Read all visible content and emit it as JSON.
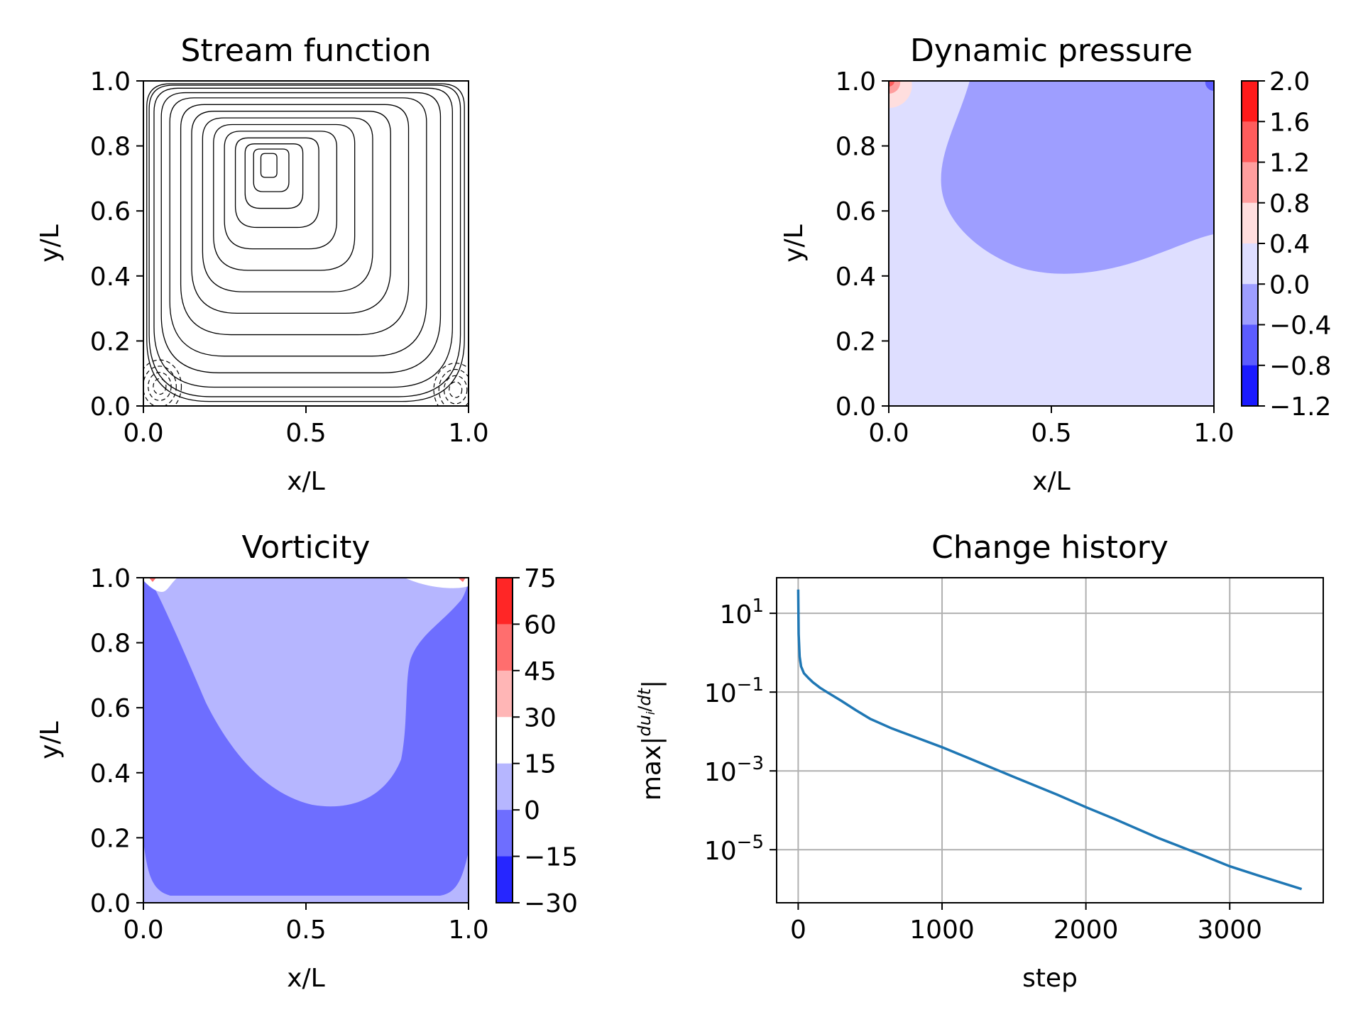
{
  "chart_data": [
    {
      "type": "contour",
      "title": "Stream function",
      "xlabel": "x/L",
      "ylabel": "y/L",
      "xlim": [
        0,
        1
      ],
      "ylim": [
        0,
        1
      ],
      "xticks": [
        "0.0",
        "0.5",
        "1.0"
      ],
      "yticks": [
        "0.0",
        "0.2",
        "0.4",
        "0.6",
        "0.8",
        "1.0"
      ],
      "line_color": "#000000",
      "vortex_center": [
        0.38,
        0.74
      ],
      "secondary_vortices": [
        [
          0.05,
          0.06
        ],
        [
          0.96,
          0.05
        ]
      ],
      "colorbar": false
    },
    {
      "type": "filled-contour",
      "title": "Dynamic pressure",
      "xlabel": "x/L",
      "ylabel": "y/L",
      "xlim": [
        0,
        1
      ],
      "ylim": [
        0,
        1
      ],
      "xticks": [
        "0.0",
        "0.5",
        "1.0"
      ],
      "yticks": [
        "0.0",
        "0.2",
        "0.4",
        "0.6",
        "0.8",
        "1.0"
      ],
      "colorbar_levels": [
        "2.0",
        "1.6",
        "1.2",
        "0.8",
        "0.4",
        "0.0",
        "−0.4",
        "−0.8",
        "−1.2"
      ],
      "colorbar_colors": [
        "#ff1a1a",
        "#ff5c5c",
        "#ff9e9e",
        "#ffdede",
        "#dedeff",
        "#9e9eff",
        "#5c5cff",
        "#1a1aff"
      ],
      "background_level_color": "#dedeff",
      "low_region_color": "#9e9eff"
    },
    {
      "type": "filled-contour",
      "title": "Vorticity",
      "xlabel": "x/L",
      "ylabel": "y/L",
      "xlim": [
        0,
        1
      ],
      "ylim": [
        0,
        1
      ],
      "xticks": [
        "0.0",
        "0.5",
        "1.0"
      ],
      "yticks": [
        "0.0",
        "0.2",
        "0.4",
        "0.6",
        "0.8",
        "1.0"
      ],
      "colorbar_levels": [
        "75",
        "60",
        "45",
        "30",
        "15",
        "0",
        "−15",
        "−30"
      ],
      "colorbar_colors": [
        "#ff2626",
        "#ff6e6e",
        "#ffb6b6",
        "#ffffff",
        "#b6b6ff",
        "#6e6eff",
        "#2626ff"
      ],
      "background_level_color": "#6e6eff",
      "mid_region_color": "#b6b6ff"
    },
    {
      "type": "line",
      "title": "Change history",
      "xlabel": "step",
      "ylabel": "max|du_i/dt|",
      "yscale": "log",
      "grid": true,
      "xlim": [
        -150,
        3650
      ],
      "ylim": [
        4.5e-07,
        80
      ],
      "xticks": [
        0,
        1000,
        2000,
        3000
      ],
      "yticks": [
        {
          "base": "10",
          "exp": "1",
          "value": 10
        },
        {
          "base": "10",
          "exp": "−1",
          "value": 0.1
        },
        {
          "base": "10",
          "exp": "−3",
          "value": 0.001
        },
        {
          "base": "10",
          "exp": "−5",
          "value": 1e-05
        }
      ],
      "series": [
        {
          "color": "#1f77b4",
          "x": [
            0,
            3,
            10,
            20,
            40,
            70,
            100,
            150,
            200,
            300,
            400,
            500,
            650,
            800,
            1000,
            1200,
            1500,
            1800,
            2000,
            2200,
            2500,
            2800,
            3000,
            3200,
            3500
          ],
          "y": [
            40,
            3,
            0.8,
            0.45,
            0.3,
            0.23,
            0.18,
            0.13,
            0.1,
            0.06,
            0.035,
            0.021,
            0.012,
            0.0075,
            0.004,
            0.002,
            0.0007,
            0.00025,
            0.00012,
            6e-05,
            2e-05,
            7.5e-06,
            3.8e-06,
            2.2e-06,
            1e-06
          ]
        }
      ]
    }
  ]
}
